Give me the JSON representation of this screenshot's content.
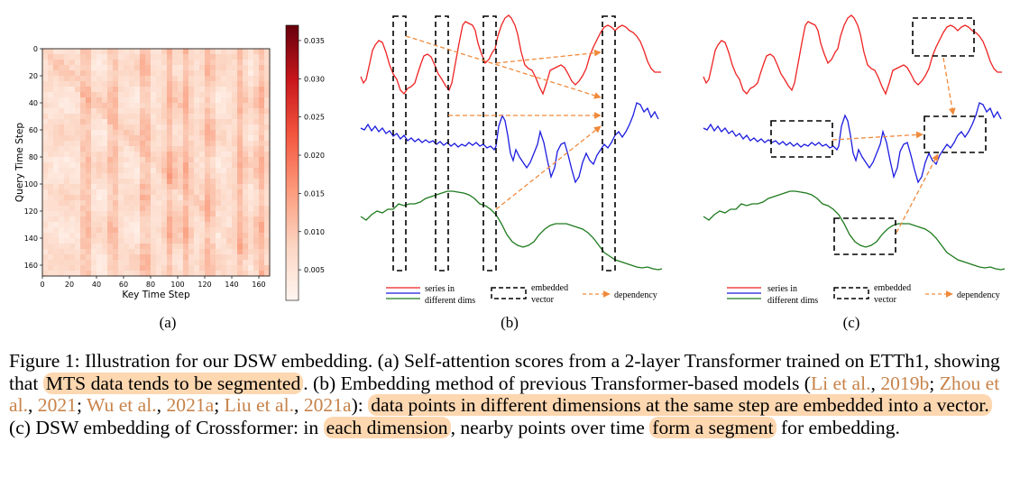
{
  "colors": {
    "red_series": "#ee2222",
    "blue_series": "#1c1ce0",
    "green_series": "#1d7a1d",
    "dependency": "#f08a3c",
    "highlight": "#fdd7b0",
    "citation": "#c8834a",
    "heat_low": "#fff5f0",
    "heat_high": "#67000d"
  },
  "panel_a": {
    "label": "(a)",
    "chart_data": {
      "type": "heatmap",
      "title": "",
      "xlabel": "Key Time Step",
      "ylabel": "Query Time Step",
      "x_ticks": [
        "0",
        "20",
        "40",
        "60",
        "80",
        "100",
        "120",
        "140",
        "160"
      ],
      "y_ticks": [
        "0",
        "20",
        "40",
        "60",
        "80",
        "100",
        "120",
        "140",
        "160"
      ],
      "xlim": [
        0,
        168
      ],
      "ylim": [
        168,
        0
      ],
      "colorbar_ticks": [
        "0.005",
        "0.010",
        "0.015",
        "0.020",
        "0.025",
        "0.030",
        "0.035"
      ],
      "colorbar_range": [
        0.001,
        0.037
      ],
      "colormap": "Reds"
    }
  },
  "panel_b": {
    "label": "(b)",
    "legend": {
      "series_line1": "series in",
      "series_line2": "different dims",
      "embedded_line1": "embedded",
      "embedded_line2": "vector",
      "dependency": "dependency"
    }
  },
  "panel_c": {
    "label": "(c)",
    "legend": {
      "series_line1": "series in",
      "series_line2": "different dims",
      "embedded_line1": "embedded",
      "embedded_line2": "vector",
      "dependency": "dependency"
    }
  },
  "caption": {
    "p1": "Figure 1: Illustration for our DSW embedding. (a) Self-attention scores from a 2-layer Transformer trained on ETTh1, showing that ",
    "hl1": "MTS data tends to be segmented",
    "p2": ". (b) Embedding method of previous Transformer-based models (",
    "c1": "Li et al.",
    "s1": ", ",
    "c1y": "2019b",
    "s2": "; ",
    "c2": "Zhou et al.",
    "s3": ", ",
    "c2y": "2021",
    "s4": "; ",
    "c3": "Wu et al.",
    "s5": ", ",
    "c3y": "2021a",
    "s6": "; ",
    "c4": "Liu et al.",
    "s7": ", ",
    "c4y": "2021a",
    "p3": "): ",
    "hl2": "data points in different dimensions at the same step are embedded into a vector.",
    "p4": " (c) DSW embedding of Crossformer: in ",
    "hl3": "each dimension",
    "p5": ", nearby points over time ",
    "hl4": "form a segment",
    "p6": " for embedding."
  }
}
